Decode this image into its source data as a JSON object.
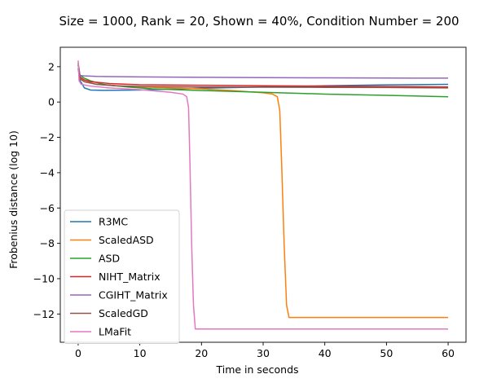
{
  "chart_data": {
    "type": "line",
    "title": "Size = 1000, Rank = 20, Shown = 40%, Condition Number = 200",
    "xlabel": "Time in seconds",
    "ylabel": "Frobenius distance (log 10)",
    "xlim": [
      -2.9,
      62.9
    ],
    "ylim": [
      -13.6,
      3.1
    ],
    "xticks": [
      0,
      10,
      20,
      30,
      40,
      50,
      60
    ],
    "yticks": [
      2,
      0,
      -2,
      -4,
      -6,
      -8,
      -10,
      -12
    ],
    "ytick_labels": [
      "2",
      "0",
      "−2",
      "−4",
      "−6",
      "−8",
      "−10",
      "−12"
    ],
    "grid": false,
    "legend_position": "lower-left",
    "series": [
      {
        "name": "R3MC",
        "color": "#1f77b4",
        "points": [
          [
            0,
            1.9
          ],
          [
            0.3,
            1.2
          ],
          [
            0.6,
            1.05
          ],
          [
            1,
            0.8
          ],
          [
            2,
            0.68
          ],
          [
            4,
            0.66
          ],
          [
            10,
            0.68
          ],
          [
            20,
            0.78
          ],
          [
            30,
            0.85
          ],
          [
            40,
            0.92
          ],
          [
            50,
            0.97
          ],
          [
            60,
            1.0
          ]
        ]
      },
      {
        "name": "ScaledASD",
        "color": "#ff7f0e",
        "points": [
          [
            0,
            2.2
          ],
          [
            0.3,
            1.4
          ],
          [
            1,
            1.15
          ],
          [
            3,
            1.0
          ],
          [
            8,
            0.88
          ],
          [
            15,
            0.8
          ],
          [
            20,
            0.74
          ],
          [
            25,
            0.65
          ],
          [
            30,
            0.52
          ],
          [
            31.5,
            0.45
          ],
          [
            32.3,
            0.3
          ],
          [
            32.7,
            -0.5
          ],
          [
            33.0,
            -3.5
          ],
          [
            33.4,
            -8.0
          ],
          [
            33.8,
            -11.5
          ],
          [
            34.2,
            -12.2
          ],
          [
            45,
            -12.2
          ],
          [
            60,
            -12.2
          ]
        ]
      },
      {
        "name": "ASD",
        "color": "#2ca02c",
        "points": [
          [
            0,
            2.2
          ],
          [
            0.3,
            1.5
          ],
          [
            1,
            1.35
          ],
          [
            2,
            1.2
          ],
          [
            4,
            1.0
          ],
          [
            8,
            0.85
          ],
          [
            12,
            0.75
          ],
          [
            20,
            0.65
          ],
          [
            30,
            0.55
          ],
          [
            40,
            0.45
          ],
          [
            50,
            0.38
          ],
          [
            60,
            0.3
          ]
        ]
      },
      {
        "name": "NIHT_Matrix",
        "color": "#d62728",
        "points": [
          [
            0,
            2.1
          ],
          [
            0.3,
            1.4
          ],
          [
            1,
            1.25
          ],
          [
            2,
            1.15
          ],
          [
            5,
            1.05
          ],
          [
            10,
            0.98
          ],
          [
            20,
            0.95
          ],
          [
            30,
            0.92
          ],
          [
            40,
            0.9
          ],
          [
            50,
            0.88
          ],
          [
            60,
            0.85
          ]
        ]
      },
      {
        "name": "CGIHT_Matrix",
        "color": "#9467bd",
        "points": [
          [
            0,
            2.1
          ],
          [
            0.3,
            1.5
          ],
          [
            1,
            1.48
          ],
          [
            3,
            1.45
          ],
          [
            10,
            1.42
          ],
          [
            20,
            1.4
          ],
          [
            30,
            1.38
          ],
          [
            40,
            1.37
          ],
          [
            50,
            1.36
          ],
          [
            60,
            1.35
          ]
        ]
      },
      {
        "name": "ScaledGD",
        "color": "#8c564b",
        "points": [
          [
            0,
            2.1
          ],
          [
            0.3,
            1.3
          ],
          [
            1,
            1.15
          ],
          [
            3,
            1.0
          ],
          [
            6,
            0.92
          ],
          [
            10,
            0.88
          ],
          [
            20,
            0.85
          ],
          [
            30,
            0.84
          ],
          [
            40,
            0.83
          ],
          [
            50,
            0.82
          ],
          [
            60,
            0.8
          ]
        ]
      },
      {
        "name": "LMaFit",
        "color": "#e377c2",
        "points": [
          [
            0,
            2.35
          ],
          [
            0.15,
            1.2
          ],
          [
            0.5,
            1.0
          ],
          [
            2,
            0.9
          ],
          [
            5,
            0.8
          ],
          [
            10,
            0.7
          ],
          [
            15,
            0.55
          ],
          [
            17,
            0.45
          ],
          [
            17.6,
            0.3
          ],
          [
            17.9,
            -0.3
          ],
          [
            18.1,
            -3
          ],
          [
            18.4,
            -8
          ],
          [
            18.7,
            -11.5
          ],
          [
            19.0,
            -12.85
          ],
          [
            30,
            -12.85
          ],
          [
            45,
            -12.85
          ],
          [
            60,
            -12.85
          ]
        ]
      }
    ]
  }
}
